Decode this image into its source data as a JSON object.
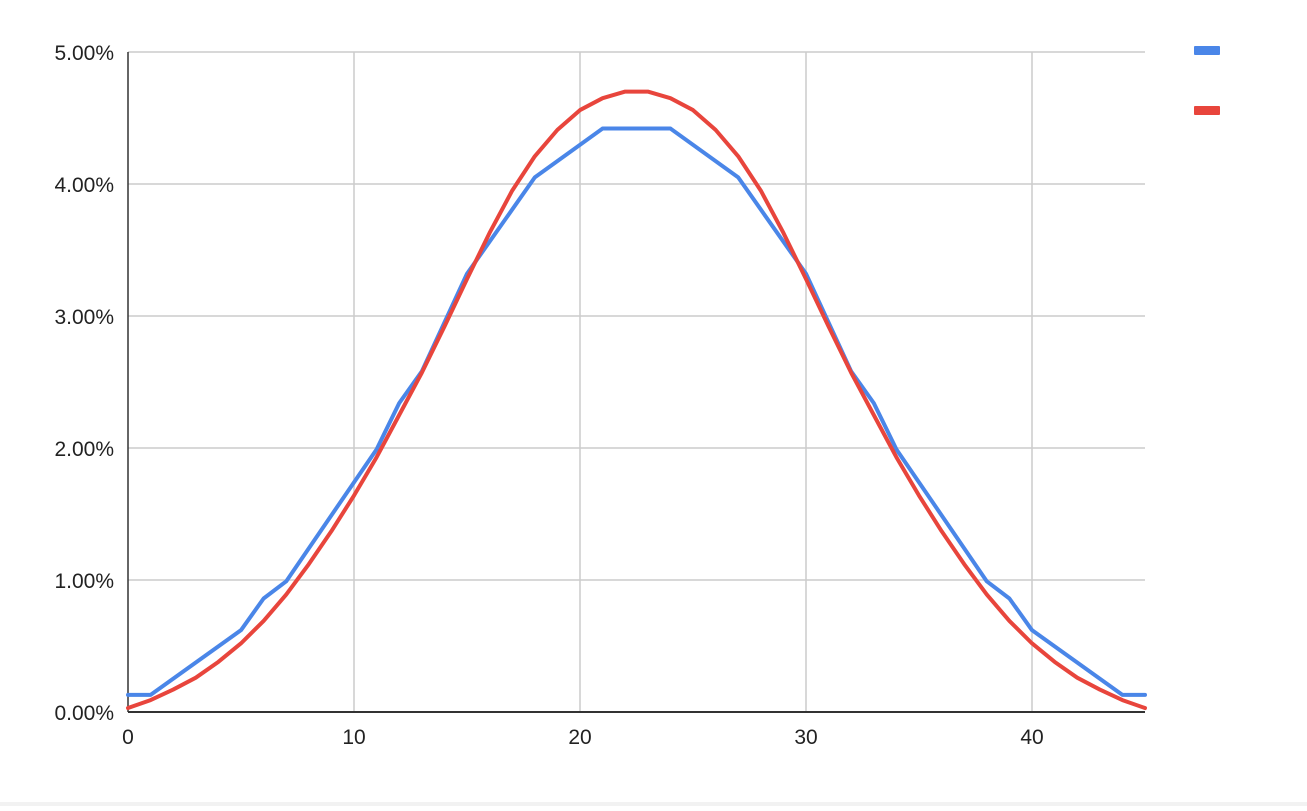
{
  "chart_data": {
    "type": "line",
    "title": "",
    "xlabel": "",
    "ylabel": "",
    "xlim": [
      0,
      45
    ],
    "ylim": [
      0,
      0.05
    ],
    "x_ticks": [
      0,
      10,
      20,
      30,
      40
    ],
    "y_ticks": [
      0,
      0.01,
      0.02,
      0.03,
      0.04,
      0.05
    ],
    "x_tick_labels": [
      "0",
      "10",
      "20",
      "30",
      "40"
    ],
    "y_tick_labels": [
      "0.00%",
      "1.00%",
      "2.00%",
      "3.00%",
      "4.00%",
      "5.00%"
    ],
    "grid": true,
    "legend": "top-right",
    "series": [
      {
        "color": "#4a86e8",
        "x": [
          0,
          1,
          5,
          6,
          7,
          11,
          12,
          13,
          15,
          18,
          21,
          24,
          27,
          30,
          32,
          33,
          34,
          38,
          39,
          40,
          44,
          45
        ],
        "y": [
          0.0013,
          0.0013,
          0.0062,
          0.0086,
          0.0099,
          0.0199,
          0.0234,
          0.0258,
          0.0332,
          0.0405,
          0.0442,
          0.0442,
          0.0405,
          0.0332,
          0.0258,
          0.0234,
          0.0199,
          0.0099,
          0.0086,
          0.0062,
          0.0013,
          0.0013
        ]
      },
      {
        "color": "#e8453c",
        "x": [
          0,
          1,
          2,
          3,
          4,
          5,
          6,
          7,
          8,
          9,
          10,
          11,
          12,
          13,
          14,
          15,
          16,
          17,
          18,
          19,
          20,
          21,
          22,
          23,
          24,
          25,
          26,
          27,
          28,
          29,
          30,
          31,
          32,
          33,
          34,
          35,
          36,
          37,
          38,
          39,
          40,
          41,
          42,
          43,
          44,
          45
        ],
        "y": [
          0.0003,
          0.0009,
          0.0017,
          0.0026,
          0.0038,
          0.0052,
          0.0069,
          0.0089,
          0.0112,
          0.0137,
          0.0164,
          0.0193,
          0.0225,
          0.0257,
          0.0292,
          0.0328,
          0.0363,
          0.0395,
          0.0421,
          0.0441,
          0.0456,
          0.0465,
          0.047,
          0.047,
          0.0465,
          0.0456,
          0.0441,
          0.0421,
          0.0395,
          0.0363,
          0.0328,
          0.0292,
          0.0257,
          0.0225,
          0.0193,
          0.0164,
          0.0137,
          0.0112,
          0.0089,
          0.0069,
          0.0052,
          0.0038,
          0.0026,
          0.0017,
          0.0009,
          0.0003
        ]
      }
    ]
  }
}
